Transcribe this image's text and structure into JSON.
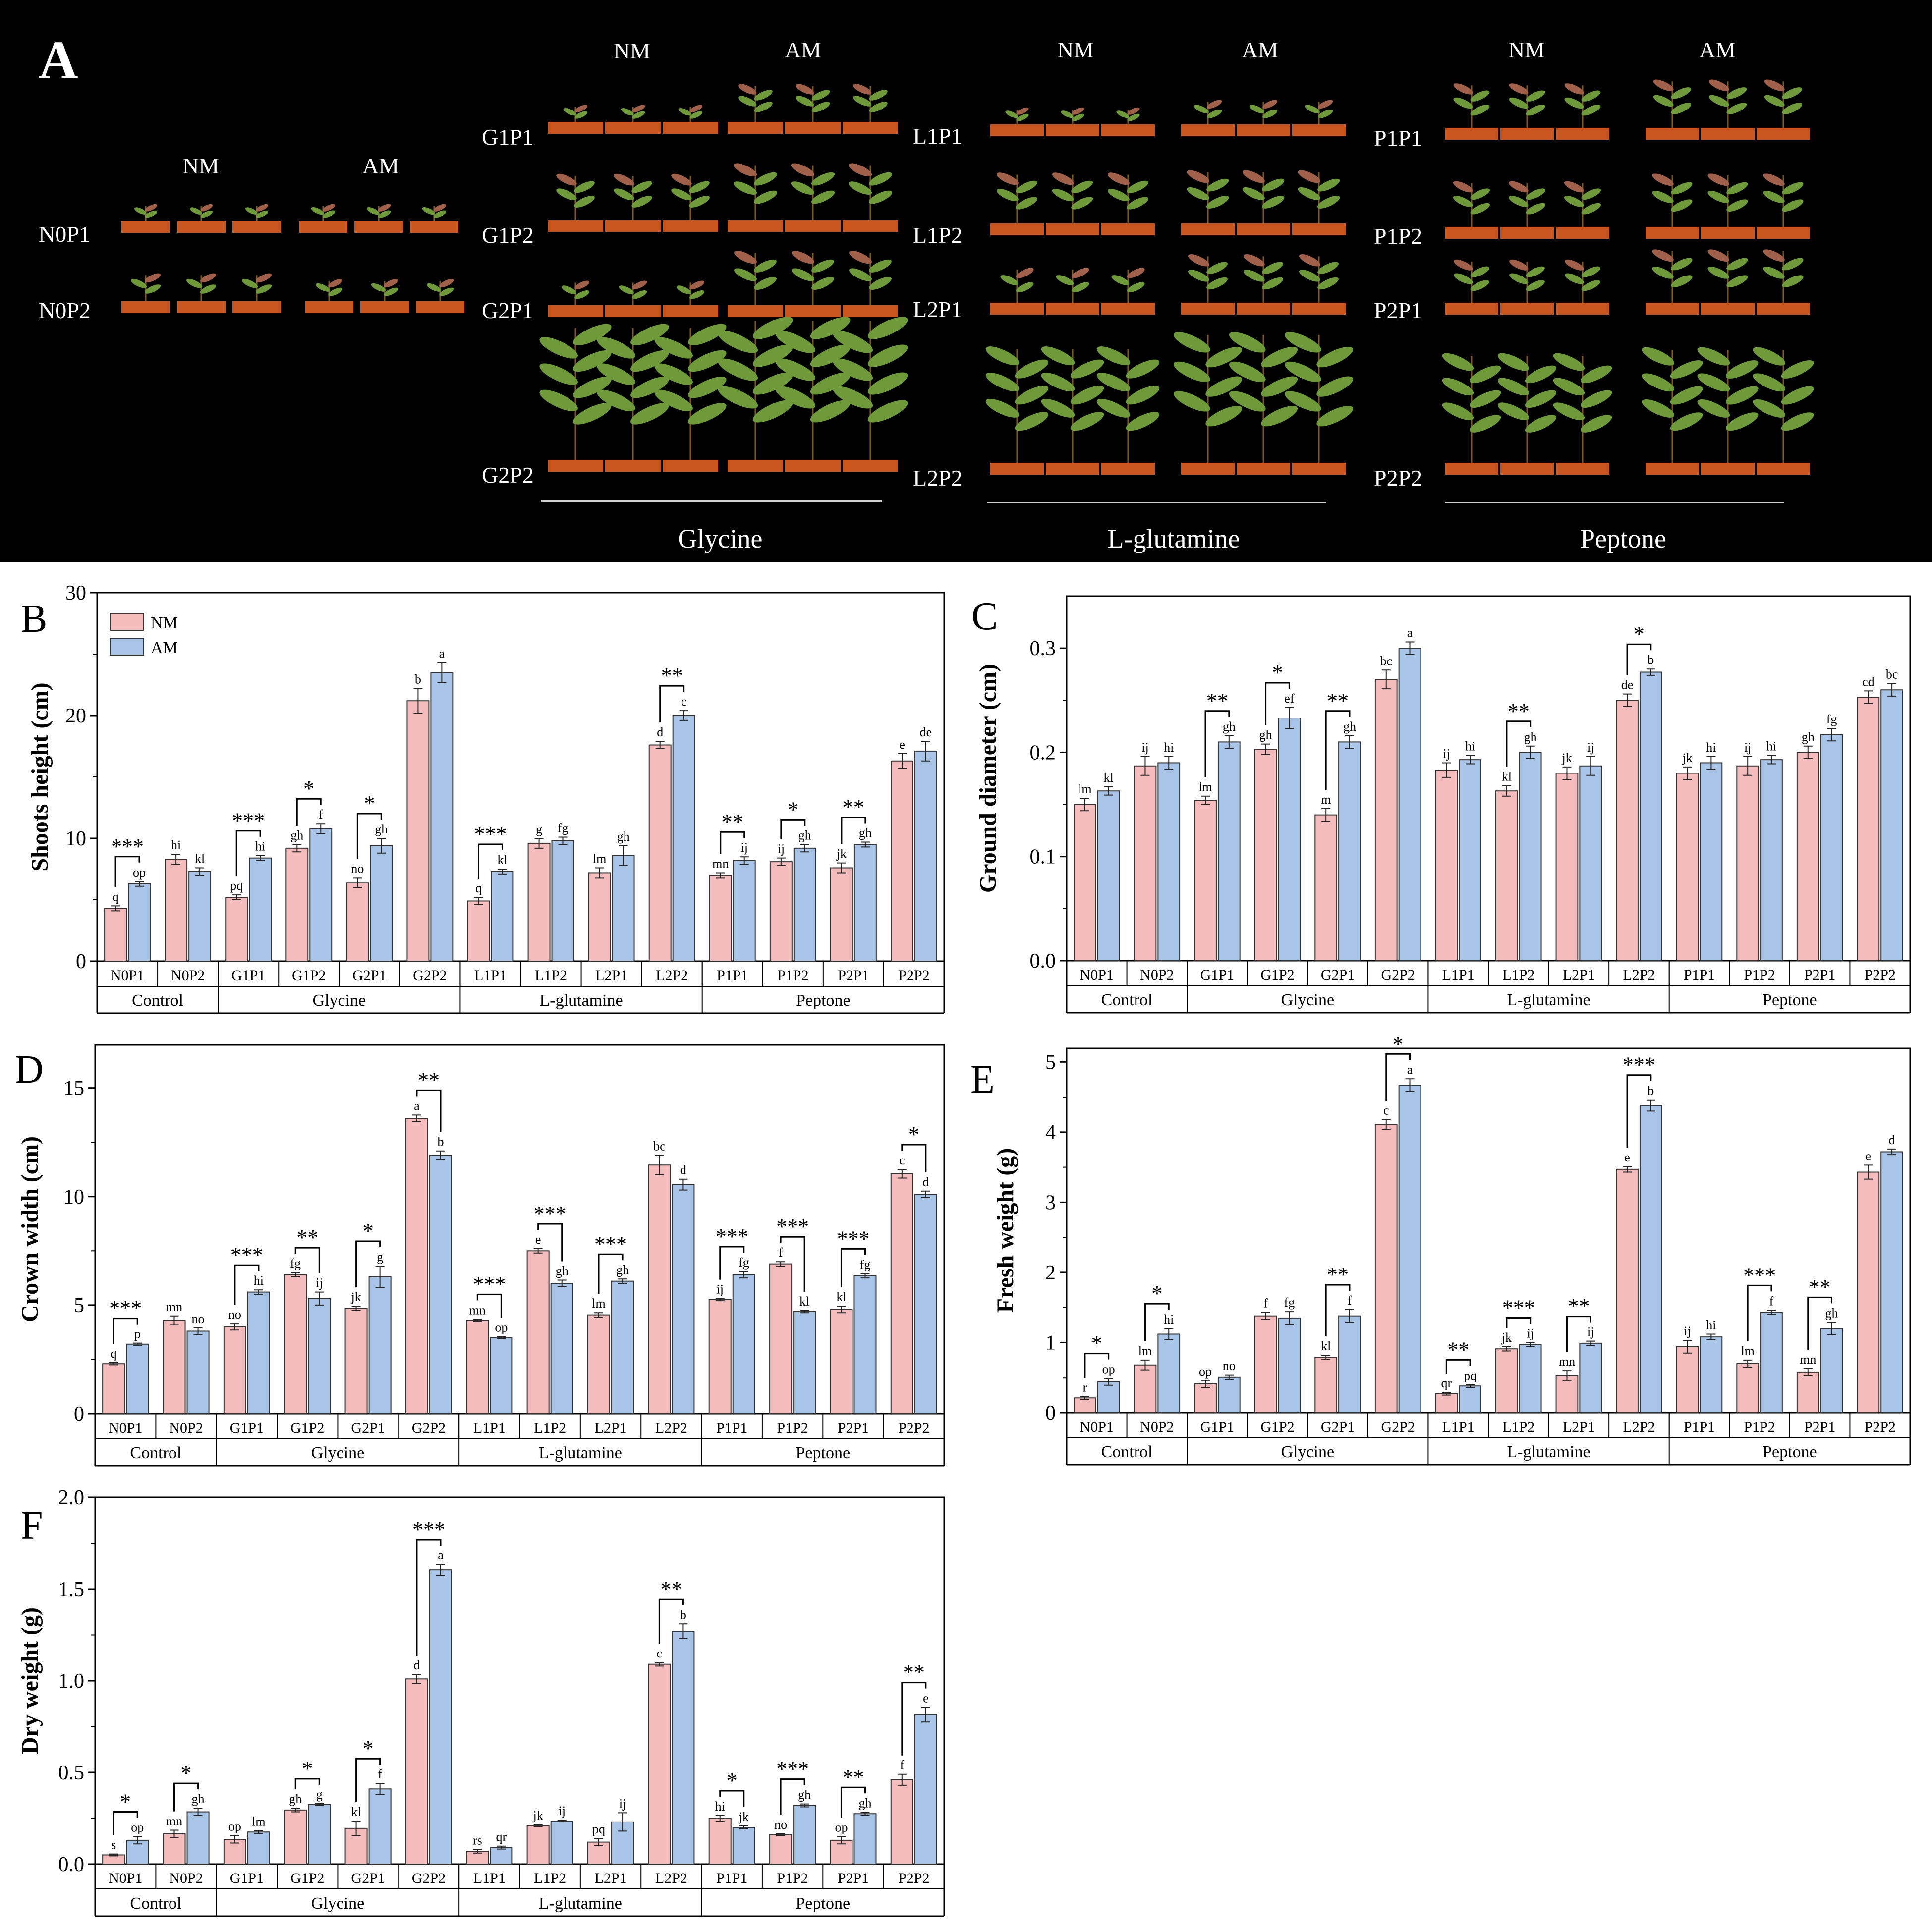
{
  "panel_a": {
    "letter": "A",
    "condition_headers": [
      "NM",
      "AM"
    ],
    "control_rows": [
      "N0P1",
      "N0P2"
    ],
    "glycine_rows": [
      "G1P1",
      "G1P2",
      "G2P1",
      "G2P2"
    ],
    "glutamine_rows": [
      "L1P1",
      "L1P2",
      "L2P1",
      "L2P2"
    ],
    "peptone_rows": [
      "P1P1",
      "P1P2",
      "P2P1",
      "P2P2"
    ],
    "group_labels": [
      "Glycine",
      "L-glutamine",
      "Peptone"
    ],
    "relative_plant_size": {
      "N0P1": [
        0.1,
        0.12
      ],
      "N0P2": [
        0.22,
        0.17
      ],
      "G1P1": [
        0.12,
        0.3
      ],
      "G1P2": [
        0.37,
        0.46
      ],
      "G2P1": [
        0.19,
        0.44
      ],
      "G2P2": [
        0.95,
        1.0
      ],
      "L1P1": [
        0.11,
        0.19
      ],
      "L1P2": [
        0.41,
        0.43
      ],
      "L2P1": [
        0.28,
        0.39
      ],
      "L2P2": [
        0.79,
        0.89
      ],
      "P1P1": [
        0.33,
        0.36
      ],
      "P1P2": [
        0.34,
        0.4
      ],
      "P2P1": [
        0.32,
        0.4
      ],
      "P2P2": [
        0.72,
        0.76
      ]
    }
  },
  "legend": {
    "nm": "NM",
    "am": "AM"
  },
  "colors": {
    "nm": "#f4bcbc",
    "am": "#a8c4e6",
    "axis": "#000000",
    "panel_a_bg": "#000000",
    "plant": "#6e9a3a",
    "pot": "#c9551f"
  },
  "chart_data": [
    {
      "panel": "B",
      "type": "bar",
      "ylabel": "Shoots height (cm)",
      "ylim": [
        0,
        30
      ],
      "yticks": [
        0,
        10,
        20,
        30
      ],
      "categories": [
        "N0P1",
        "N0P2",
        "G1P1",
        "G1P2",
        "G2P1",
        "G2P2",
        "L1P1",
        "L1P2",
        "L2P1",
        "L2P2",
        "P1P1",
        "P1P2",
        "P2P1",
        "P2P2"
      ],
      "groups": [
        {
          "name": "Control",
          "span": [
            0,
            1
          ]
        },
        {
          "name": "Glycine",
          "span": [
            2,
            5
          ]
        },
        {
          "name": "L-glutamine",
          "span": [
            6,
            9
          ]
        },
        {
          "name": "Peptone",
          "span": [
            10,
            13
          ]
        }
      ],
      "series": [
        {
          "name": "NM",
          "values": [
            4.3,
            8.3,
            5.2,
            9.2,
            6.4,
            21.2,
            4.9,
            9.6,
            7.2,
            17.6,
            7.0,
            8.1,
            7.6,
            16.3
          ],
          "errors": [
            0.2,
            0.4,
            0.2,
            0.3,
            0.4,
            1.0,
            0.3,
            0.4,
            0.4,
            0.3,
            0.2,
            0.3,
            0.4,
            0.6
          ],
          "letters": [
            "q",
            "hi",
            "pq",
            "gh",
            "no",
            "b",
            "q",
            "g",
            "lm",
            "d",
            "mn",
            "ij",
            "jk",
            "e"
          ]
        },
        {
          "name": "AM",
          "values": [
            6.3,
            7.3,
            8.4,
            10.8,
            9.4,
            23.5,
            7.3,
            9.8,
            8.6,
            20.0,
            8.2,
            9.2,
            9.5,
            17.1
          ],
          "errors": [
            0.2,
            0.3,
            0.2,
            0.4,
            0.6,
            0.8,
            0.2,
            0.3,
            0.8,
            0.4,
            0.3,
            0.3,
            0.2,
            0.8
          ],
          "letters": [
            "op",
            "kl",
            "hi",
            "f",
            "gh",
            "a",
            "kl",
            "fg",
            "gh",
            "c",
            "ij",
            "gh",
            "gh",
            "de"
          ]
        }
      ],
      "sig": [
        {
          "i": 0,
          "label": "***"
        },
        {
          "i": 2,
          "label": "***"
        },
        {
          "i": 3,
          "label": "*"
        },
        {
          "i": 4,
          "label": "*"
        },
        {
          "i": 6,
          "label": "***"
        },
        {
          "i": 9,
          "label": "**"
        },
        {
          "i": 10,
          "label": "**"
        },
        {
          "i": 11,
          "label": "*"
        },
        {
          "i": 12,
          "label": "**"
        }
      ]
    },
    {
      "panel": "C",
      "type": "bar",
      "ylabel": "Ground diameter (cm)",
      "ylim": [
        0,
        0.35
      ],
      "yticks": [
        0.0,
        0.1,
        0.2,
        0.3
      ],
      "tick_decimals": 1,
      "categories": [
        "N0P1",
        "N0P2",
        "G1P1",
        "G1P2",
        "G2P1",
        "G2P2",
        "L1P1",
        "L1P2",
        "L2P1",
        "L2P2",
        "P1P1",
        "P1P2",
        "P2P1",
        "P2P2"
      ],
      "groups": [
        {
          "name": "Control",
          "span": [
            0,
            1
          ]
        },
        {
          "name": "Glycine",
          "span": [
            2,
            5
          ]
        },
        {
          "name": "L-glutamine",
          "span": [
            6,
            9
          ]
        },
        {
          "name": "Peptone",
          "span": [
            10,
            13
          ]
        }
      ],
      "series": [
        {
          "name": "NM",
          "values": [
            0.15,
            0.187,
            0.154,
            0.203,
            0.14,
            0.27,
            0.183,
            0.163,
            0.18,
            0.25,
            0.18,
            0.187,
            0.2,
            0.253
          ],
          "errors": [
            0.006,
            0.009,
            0.004,
            0.005,
            0.006,
            0.009,
            0.007,
            0.005,
            0.006,
            0.006,
            0.006,
            0.009,
            0.006,
            0.006
          ],
          "letters": [
            "lm",
            "ij",
            "lm",
            "gh",
            "m",
            "bc",
            "ij",
            "kl",
            "jk",
            "de",
            "jk",
            "ij",
            "gh",
            "cd"
          ]
        },
        {
          "name": "AM",
          "values": [
            0.163,
            0.19,
            0.21,
            0.233,
            0.21,
            0.3,
            0.193,
            0.2,
            0.187,
            0.277,
            0.19,
            0.193,
            0.217,
            0.26
          ],
          "errors": [
            0.004,
            0.006,
            0.006,
            0.01,
            0.006,
            0.006,
            0.004,
            0.006,
            0.009,
            0.003,
            0.006,
            0.004,
            0.006,
            0.006
          ],
          "letters": [
            "kl",
            "hi",
            "gh",
            "ef",
            "gh",
            "a",
            "hi",
            "gh",
            "ij",
            "b",
            "hi",
            "hi",
            "fg",
            "bc"
          ]
        }
      ],
      "sig": [
        {
          "i": 2,
          "label": "**"
        },
        {
          "i": 3,
          "label": "*"
        },
        {
          "i": 4,
          "label": "**"
        },
        {
          "i": 7,
          "label": "**"
        },
        {
          "i": 9,
          "label": "*"
        }
      ]
    },
    {
      "panel": "D",
      "type": "bar",
      "ylabel": "Crown width (cm)",
      "ylim": [
        0,
        17
      ],
      "yticks": [
        0,
        5,
        10,
        15
      ],
      "categories": [
        "N0P1",
        "N0P2",
        "G1P1",
        "G1P2",
        "G2P1",
        "G2P2",
        "L1P1",
        "L1P2",
        "L2P1",
        "L2P2",
        "P1P1",
        "P1P2",
        "P2P1",
        "P2P2"
      ],
      "groups": [
        {
          "name": "Control",
          "span": [
            0,
            1
          ]
        },
        {
          "name": "Glycine",
          "span": [
            2,
            5
          ]
        },
        {
          "name": "L-glutamine",
          "span": [
            6,
            9
          ]
        },
        {
          "name": "Peptone",
          "span": [
            10,
            13
          ]
        }
      ],
      "series": [
        {
          "name": "NM",
          "values": [
            2.3,
            4.3,
            4.0,
            6.4,
            4.85,
            13.6,
            4.3,
            7.5,
            4.55,
            11.45,
            5.25,
            6.9,
            4.8,
            11.05
          ],
          "errors": [
            0.05,
            0.2,
            0.15,
            0.1,
            0.1,
            0.15,
            0.05,
            0.1,
            0.1,
            0.45,
            0.05,
            0.1,
            0.15,
            0.2
          ],
          "letters": [
            "q",
            "mn",
            "no",
            "fg",
            "jk",
            "a",
            "mn",
            "e",
            "lm",
            "bc",
            "ij",
            "f",
            "kl",
            "c"
          ]
        },
        {
          "name": "AM",
          "values": [
            3.2,
            3.8,
            5.6,
            5.3,
            6.3,
            11.9,
            3.5,
            6.0,
            6.1,
            10.55,
            6.4,
            4.7,
            6.35,
            10.1
          ],
          "errors": [
            0.05,
            0.15,
            0.1,
            0.3,
            0.5,
            0.2,
            0.05,
            0.15,
            0.1,
            0.25,
            0.15,
            0.05,
            0.1,
            0.15
          ],
          "letters": [
            "p",
            "no",
            "hi",
            "ij",
            "g",
            "b",
            "op",
            "gh",
            "gh",
            "d",
            "fg",
            "kl",
            "fg",
            "d"
          ]
        }
      ],
      "sig": [
        {
          "i": 0,
          "label": "***"
        },
        {
          "i": 2,
          "label": "***"
        },
        {
          "i": 3,
          "label": "**"
        },
        {
          "i": 4,
          "label": "*"
        },
        {
          "i": 5,
          "label": "**"
        },
        {
          "i": 6,
          "label": "***"
        },
        {
          "i": 7,
          "label": "***"
        },
        {
          "i": 8,
          "label": "***"
        },
        {
          "i": 10,
          "label": "***"
        },
        {
          "i": 11,
          "label": "***"
        },
        {
          "i": 12,
          "label": "***"
        },
        {
          "i": 13,
          "label": "*"
        }
      ]
    },
    {
      "panel": "E",
      "type": "bar",
      "ylabel": "Fresh weight (g)",
      "ylim": [
        0,
        5.2
      ],
      "yticks": [
        0,
        1,
        2,
        3,
        4,
        5
      ],
      "categories": [
        "N0P1",
        "N0P2",
        "G1P1",
        "G1P2",
        "G2P1",
        "G2P2",
        "L1P1",
        "L1P2",
        "L2P1",
        "L2P2",
        "P1P1",
        "P1P2",
        "P2P1",
        "P2P2"
      ],
      "groups": [
        {
          "name": "Control",
          "span": [
            0,
            1
          ]
        },
        {
          "name": "Glycine",
          "span": [
            2,
            5
          ]
        },
        {
          "name": "L-glutamine",
          "span": [
            6,
            9
          ]
        },
        {
          "name": "Peptone",
          "span": [
            10,
            13
          ]
        }
      ],
      "series": [
        {
          "name": "NM",
          "values": [
            0.21,
            0.68,
            0.41,
            1.38,
            0.79,
            4.11,
            0.27,
            0.91,
            0.53,
            3.47,
            0.94,
            0.7,
            0.58,
            3.43
          ],
          "errors": [
            0.02,
            0.07,
            0.05,
            0.05,
            0.03,
            0.07,
            0.02,
            0.03,
            0.07,
            0.04,
            0.09,
            0.05,
            0.05,
            0.1
          ],
          "letters": [
            "r",
            "lm",
            "op",
            "f",
            "kl",
            "c",
            "qr",
            "jk",
            "mn",
            "e",
            "ij",
            "lm",
            "mn",
            "e"
          ]
        },
        {
          "name": "AM",
          "values": [
            0.44,
            1.12,
            0.51,
            1.35,
            1.38,
            4.67,
            0.38,
            0.97,
            0.99,
            4.38,
            1.08,
            1.43,
            1.2,
            3.72
          ],
          "errors": [
            0.05,
            0.08,
            0.03,
            0.09,
            0.09,
            0.09,
            0.02,
            0.03,
            0.03,
            0.08,
            0.04,
            0.03,
            0.09,
            0.04
          ],
          "letters": [
            "op",
            "hi",
            "no",
            "fg",
            "f",
            "a",
            "pq",
            "ij",
            "ij",
            "b",
            "hi",
            "f",
            "gh",
            "d"
          ]
        }
      ],
      "sig": [
        {
          "i": 0,
          "label": "*"
        },
        {
          "i": 1,
          "label": "*"
        },
        {
          "i": 4,
          "label": "**"
        },
        {
          "i": 5,
          "label": "*"
        },
        {
          "i": 6,
          "label": "**"
        },
        {
          "i": 7,
          "label": "***"
        },
        {
          "i": 8,
          "label": "**"
        },
        {
          "i": 9,
          "label": "***"
        },
        {
          "i": 11,
          "label": "***"
        },
        {
          "i": 12,
          "label": "**"
        }
      ]
    },
    {
      "panel": "F",
      "type": "bar",
      "ylabel": "Dry weight (g)",
      "ylim": [
        0,
        2.0
      ],
      "yticks": [
        0.0,
        0.5,
        1.0,
        1.5,
        2.0
      ],
      "tick_decimals": 1,
      "categories": [
        "N0P1",
        "N0P2",
        "G1P1",
        "G1P2",
        "G2P1",
        "G2P2",
        "L1P1",
        "L1P2",
        "L2P1",
        "L2P2",
        "P1P1",
        "P1P2",
        "P2P1",
        "P2P2"
      ],
      "groups": [
        {
          "name": "Control",
          "span": [
            0,
            1
          ]
        },
        {
          "name": "Glycine",
          "span": [
            2,
            5
          ]
        },
        {
          "name": "L-glutamine",
          "span": [
            6,
            9
          ]
        },
        {
          "name": "Peptone",
          "span": [
            10,
            13
          ]
        }
      ],
      "series": [
        {
          "name": "NM",
          "values": [
            0.05,
            0.165,
            0.135,
            0.295,
            0.195,
            1.01,
            0.07,
            0.21,
            0.12,
            1.09,
            0.25,
            0.16,
            0.13,
            0.46
          ],
          "errors": [
            0.005,
            0.02,
            0.02,
            0.01,
            0.04,
            0.025,
            0.01,
            0.005,
            0.02,
            0.01,
            0.015,
            0.005,
            0.02,
            0.03
          ],
          "letters": [
            "s",
            "mn",
            "op",
            "gh",
            "kl",
            "d",
            "rs",
            "jk",
            "pq",
            "c",
            "hi",
            "no",
            "op",
            "f"
          ]
        },
        {
          "name": "AM",
          "values": [
            0.13,
            0.285,
            0.175,
            0.325,
            0.41,
            1.605,
            0.09,
            0.235,
            0.23,
            1.27,
            0.2,
            0.32,
            0.275,
            0.815
          ],
          "errors": [
            0.02,
            0.02,
            0.008,
            0.005,
            0.03,
            0.03,
            0.008,
            0.005,
            0.05,
            0.04,
            0.008,
            0.008,
            0.008,
            0.04
          ],
          "letters": [
            "op",
            "gh",
            "lm",
            "g",
            "f",
            "a",
            "qr",
            "ij",
            "ij",
            "b",
            "jk",
            "gh",
            "gh",
            "e"
          ]
        }
      ],
      "sig": [
        {
          "i": 0,
          "label": "*"
        },
        {
          "i": 1,
          "label": "*"
        },
        {
          "i": 3,
          "label": "*"
        },
        {
          "i": 4,
          "label": "*"
        },
        {
          "i": 5,
          "label": "***"
        },
        {
          "i": 9,
          "label": "**"
        },
        {
          "i": 10,
          "label": "*"
        },
        {
          "i": 11,
          "label": "***"
        },
        {
          "i": 12,
          "label": "**"
        },
        {
          "i": 13,
          "label": "**"
        }
      ]
    }
  ]
}
